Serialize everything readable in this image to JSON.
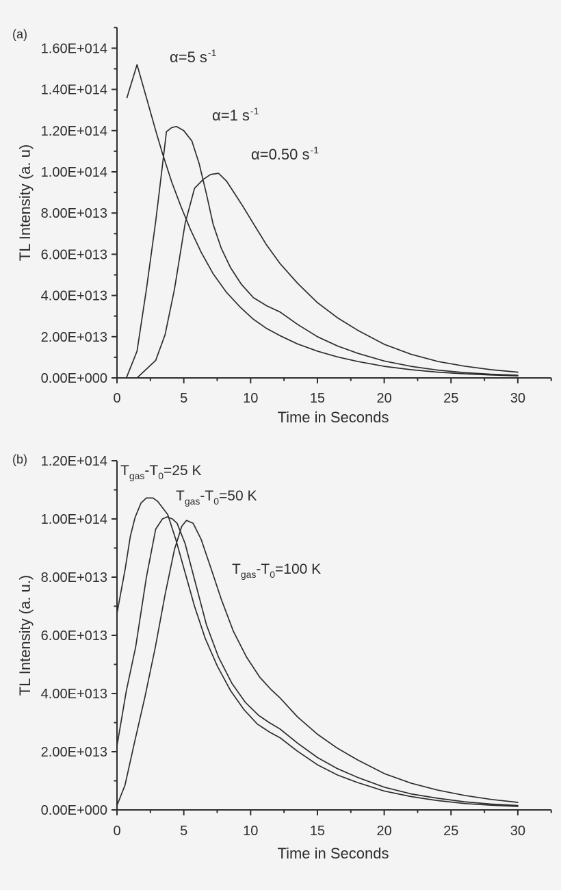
{
  "figure": {
    "background": "#f5f4f5",
    "ink": "#2d2d2d",
    "panels": [
      {
        "letter": "(a)",
        "ylabel": "TL Intensity (a. u)",
        "xlabel": "Time in Seconds",
        "y_ticks": {
          "values_e13": [
            0,
            2,
            4,
            6,
            8,
            10,
            12,
            14,
            16
          ],
          "labels": [
            "0.00E+000",
            "2.00E+013",
            "4.00E+013",
            "6.00E+013",
            "8.00E+013",
            "1.00E+014",
            "1.20E+014",
            "1.40E+014",
            "1.60E+014"
          ]
        },
        "y_minor_e13": [
          1,
          3,
          5,
          7,
          9,
          11,
          13,
          15,
          17
        ],
        "x_ticks": {
          "values": [
            0,
            5,
            10,
            15,
            20,
            25,
            30
          ],
          "labels": [
            "0",
            "5",
            "10",
            "15",
            "20",
            "25",
            "30"
          ]
        },
        "x_minor": [
          2.5,
          7.5,
          12.5,
          17.5,
          22.5,
          27.5,
          32.5
        ],
        "annotations": [
          {
            "base": "α=5 s",
            "sup": "-1"
          },
          {
            "base": "α=1 s",
            "sup": "-1"
          },
          {
            "base": "α=0.50 s",
            "sup": "-1"
          }
        ]
      },
      {
        "letter": "(b)",
        "ylabel": "TL Intensity (a. u.)",
        "xlabel": "Time in Seconds",
        "y_ticks": {
          "values_e13": [
            0,
            2,
            4,
            6,
            8,
            10,
            12
          ],
          "labels": [
            "0.00E+000",
            "2.00E+013",
            "4.00E+013",
            "6.00E+013",
            "8.00E+013",
            "1.00E+014",
            "1.20E+014"
          ]
        },
        "y_minor_e13": [
          1,
          3,
          5,
          7,
          9,
          11
        ],
        "x_ticks": {
          "values": [
            0,
            5,
            10,
            15,
            20,
            25,
            30
          ],
          "labels": [
            "0",
            "5",
            "10",
            "15",
            "20",
            "25",
            "30"
          ]
        },
        "x_minor": [
          2.5,
          7.5,
          12.5,
          17.5,
          22.5,
          27.5,
          32.5
        ],
        "annotations": [
          {
            "t1": "T",
            "s1": "gas",
            "t2": "-T",
            "s2": "0",
            "t3": "=25 K"
          },
          {
            "t1": "T",
            "s1": "gas",
            "t2": "-T",
            "s2": "0",
            "t3": "=50 K"
          },
          {
            "t1": "T",
            "s1": "gas",
            "t2": "-T",
            "s2": "0",
            "t3": "=100 K"
          }
        ]
      }
    ]
  },
  "chart_data": [
    {
      "type": "line",
      "panel": "a",
      "title": "",
      "xlabel": "Time in Seconds",
      "ylabel": "TL Intensity (a. u)",
      "xlim": [
        0,
        32.5
      ],
      "ylim": [
        0,
        170000000000000.0
      ],
      "x_units": "s",
      "y_units_note": "point y-values are in units of 1e13 a.u.",
      "grid": false,
      "legend": "inline-annotations",
      "series": [
        {
          "name": "α=5 s^-1",
          "points": [
            [
              0.75,
              13.6
            ],
            [
              1.5,
              15.2
            ],
            [
              2.2,
              13.6
            ],
            [
              2.9,
              12.0
            ],
            [
              3.4,
              10.9
            ],
            [
              4.1,
              9.5
            ],
            [
              4.8,
              8.3
            ],
            [
              5.5,
              7.2
            ],
            [
              6.3,
              6.1
            ],
            [
              7.2,
              5.05
            ],
            [
              8.2,
              4.15
            ],
            [
              9.2,
              3.45
            ],
            [
              10.2,
              2.85
            ],
            [
              11.2,
              2.4
            ],
            [
              12.2,
              2.05
            ],
            [
              13.5,
              1.65
            ],
            [
              15,
              1.3
            ],
            [
              16.5,
              1.02
            ],
            [
              18,
              0.8
            ],
            [
              20,
              0.56
            ],
            [
              22,
              0.4
            ],
            [
              24,
              0.28
            ],
            [
              26,
              0.2
            ],
            [
              28,
              0.14
            ],
            [
              30,
              0.1
            ]
          ]
        },
        {
          "name": "α=1 s^-1",
          "points": [
            [
              0.7,
              0
            ],
            [
              1.5,
              1.3
            ],
            [
              2.2,
              4.3
            ],
            [
              2.9,
              7.6
            ],
            [
              3.4,
              10.3
            ],
            [
              3.7,
              11.95
            ],
            [
              4.1,
              12.15
            ],
            [
              4.45,
              12.2
            ],
            [
              5.0,
              12.0
            ],
            [
              5.6,
              11.5
            ],
            [
              6.15,
              10.4
            ],
            [
              6.7,
              8.9
            ],
            [
              7.2,
              7.45
            ],
            [
              7.8,
              6.3
            ],
            [
              8.5,
              5.35
            ],
            [
              9.3,
              4.55
            ],
            [
              10.2,
              3.9
            ],
            [
              11.2,
              3.5
            ],
            [
              12.2,
              3.2
            ],
            [
              13.5,
              2.6
            ],
            [
              15,
              2.0
            ],
            [
              16.5,
              1.55
            ],
            [
              18,
              1.2
            ],
            [
              20,
              0.82
            ],
            [
              22,
              0.56
            ],
            [
              24,
              0.38
            ],
            [
              26,
              0.26
            ],
            [
              28,
              0.18
            ],
            [
              30,
              0.13
            ]
          ]
        },
        {
          "name": "α=0.50 s^-1",
          "points": [
            [
              1.5,
              0
            ],
            [
              2.9,
              0.85
            ],
            [
              3.6,
              2.1
            ],
            [
              4.3,
              4.3
            ],
            [
              5.1,
              7.5
            ],
            [
              5.8,
              9.2
            ],
            [
              6.45,
              9.63
            ],
            [
              7.0,
              9.87
            ],
            [
              7.6,
              9.93
            ],
            [
              8.2,
              9.55
            ],
            [
              8.6,
              9.15
            ],
            [
              9.4,
              8.35
            ],
            [
              10.1,
              7.6
            ],
            [
              11.2,
              6.45
            ],
            [
              12.2,
              5.55
            ],
            [
              13.5,
              4.6
            ],
            [
              15,
              3.65
            ],
            [
              16.5,
              2.92
            ],
            [
              18,
              2.32
            ],
            [
              20,
              1.63
            ],
            [
              22,
              1.15
            ],
            [
              24,
              0.8
            ],
            [
              26,
              0.57
            ],
            [
              28,
              0.4
            ],
            [
              30,
              0.28
            ]
          ]
        }
      ]
    },
    {
      "type": "line",
      "panel": "b",
      "title": "",
      "xlabel": "Time in Seconds",
      "ylabel": "TL Intensity (a. u.)",
      "xlim": [
        0,
        32.5
      ],
      "ylim": [
        0,
        120000000000000.0
      ],
      "x_units": "s",
      "y_units_note": "point y-values are in units of 1e13 a.u.",
      "grid": false,
      "legend": "inline-annotations",
      "series": [
        {
          "name": "Tgas-T0=25 K",
          "points": [
            [
              0,
              6.75
            ],
            [
              0.62,
              8.3
            ],
            [
              1.0,
              9.4
            ],
            [
              1.35,
              10.05
            ],
            [
              1.8,
              10.55
            ],
            [
              2.2,
              10.72
            ],
            [
              2.7,
              10.72
            ],
            [
              3.05,
              10.6
            ],
            [
              3.8,
              10.15
            ],
            [
              4.4,
              9.3
            ],
            [
              5.1,
              8.15
            ],
            [
              5.8,
              7.0
            ],
            [
              6.6,
              5.9
            ],
            [
              7.5,
              4.95
            ],
            [
              8.5,
              4.1
            ],
            [
              9.5,
              3.45
            ],
            [
              10.5,
              2.95
            ],
            [
              11.4,
              2.68
            ],
            [
              12.2,
              2.48
            ],
            [
              13.5,
              2.02
            ],
            [
              15,
              1.55
            ],
            [
              16.5,
              1.2
            ],
            [
              18,
              0.94
            ],
            [
              20,
              0.65
            ],
            [
              22,
              0.46
            ],
            [
              24,
              0.32
            ],
            [
              26,
              0.22
            ],
            [
              28,
              0.16
            ],
            [
              30,
              0.12
            ]
          ]
        },
        {
          "name": "Tgas-T0=50 K",
          "points": [
            [
              0,
              2.2
            ],
            [
              0.7,
              4.1
            ],
            [
              1.4,
              5.6
            ],
            [
              2.2,
              8.0
            ],
            [
              2.9,
              9.65
            ],
            [
              3.4,
              10.0
            ],
            [
              3.75,
              10.07
            ],
            [
              4.15,
              10.0
            ],
            [
              4.5,
              9.85
            ],
            [
              5.1,
              9.15
            ],
            [
              5.9,
              7.75
            ],
            [
              6.7,
              6.35
            ],
            [
              7.6,
              5.25
            ],
            [
              8.6,
              4.35
            ],
            [
              9.6,
              3.7
            ],
            [
              10.6,
              3.25
            ],
            [
              11.4,
              3.0
            ],
            [
              12.2,
              2.78
            ],
            [
              13.5,
              2.3
            ],
            [
              15,
              1.8
            ],
            [
              16.5,
              1.42
            ],
            [
              18,
              1.12
            ],
            [
              20,
              0.78
            ],
            [
              22,
              0.55
            ],
            [
              24,
              0.4
            ],
            [
              26,
              0.28
            ],
            [
              28,
              0.2
            ],
            [
              30,
              0.15
            ]
          ]
        },
        {
          "name": "Tgas-T0=100 K",
          "points": [
            [
              0,
              0.15
            ],
            [
              0.6,
              0.85
            ],
            [
              1.3,
              2.3
            ],
            [
              2.1,
              3.9
            ],
            [
              2.87,
              5.6
            ],
            [
              3.6,
              7.4
            ],
            [
              4.3,
              8.95
            ],
            [
              4.85,
              9.75
            ],
            [
              5.2,
              9.95
            ],
            [
              5.7,
              9.85
            ],
            [
              6.3,
              9.3
            ],
            [
              7.0,
              8.35
            ],
            [
              7.8,
              7.25
            ],
            [
              8.7,
              6.15
            ],
            [
              9.7,
              5.25
            ],
            [
              10.7,
              4.55
            ],
            [
              11.5,
              4.15
            ],
            [
              12.2,
              3.85
            ],
            [
              13.5,
              3.2
            ],
            [
              15,
              2.6
            ],
            [
              16.5,
              2.12
            ],
            [
              18,
              1.72
            ],
            [
              20,
              1.25
            ],
            [
              22,
              0.92
            ],
            [
              24,
              0.68
            ],
            [
              26,
              0.5
            ],
            [
              28,
              0.36
            ],
            [
              30,
              0.26
            ]
          ]
        }
      ]
    }
  ]
}
